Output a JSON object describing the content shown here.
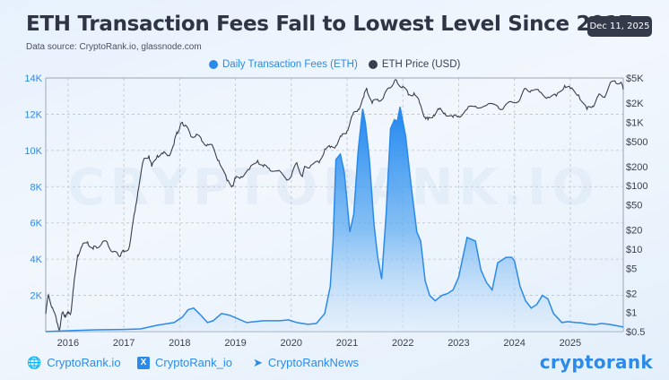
{
  "header": {
    "title": "ETH Transaction Fees Fall to Lowest Level Since 2017",
    "date": "Dec 11, 2025",
    "source": "Data source: CryptoRank.io, glassnode.com"
  },
  "watermark": "CRYPTORANK.IO",
  "footer": {
    "links": [
      {
        "icon": "globe-icon",
        "label": "CryptoRank.io"
      },
      {
        "icon": "x-icon",
        "label": "CryptoRank_io"
      },
      {
        "icon": "telegram-icon",
        "label": "CryptoRankNews"
      }
    ],
    "logo": "cryptorank"
  },
  "colors": {
    "fees": "#2b8ae8",
    "price": "#3a3f4e",
    "left_axis": "#2b8ae8",
    "right_axis": "#3a3f4e"
  },
  "chart_data": {
    "type": "line",
    "title": "ETH Transaction Fees Fall to Lowest Level Since 2017",
    "legend": [
      "Daily Transaction Fees (ETH)",
      "ETH Price (USD)"
    ],
    "legend_position": "top-center",
    "grid": true,
    "x_ticks": [
      "2016",
      "2017",
      "2018",
      "2019",
      "2020",
      "2021",
      "2022",
      "2023",
      "2024",
      "2025"
    ],
    "xlim": [
      2015.6,
      2025.95
    ],
    "left_axis": {
      "label": "Daily Transaction Fees (ETH)",
      "ylim": [
        0,
        14000
      ],
      "ticks": [
        2000,
        4000,
        6000,
        8000,
        10000,
        12000,
        14000
      ],
      "tick_labels": [
        "2K",
        "4K",
        "6K",
        "8K",
        "10K",
        "12K",
        "14K"
      ]
    },
    "right_axis": {
      "label": "ETH Price (USD)",
      "scale": "log",
      "ylim": [
        0.5,
        5000
      ],
      "ticks": [
        0.5,
        1,
        2,
        5,
        10,
        20,
        50,
        100,
        200,
        500,
        1000,
        2000,
        5000
      ],
      "tick_labels": [
        "$0.5",
        "$1",
        "$2",
        "$5",
        "$10",
        "$20",
        "$50",
        "$100",
        "$200",
        "$500",
        "$1K",
        "$2K",
        "$5K"
      ]
    },
    "series": [
      {
        "name": "Daily Transaction Fees (ETH)",
        "axis": "left",
        "style": "area",
        "x": [
          2015.6,
          2016.0,
          2016.5,
          2017.0,
          2017.3,
          2017.6,
          2017.9,
          2018.05,
          2018.15,
          2018.25,
          2018.35,
          2018.5,
          2018.6,
          2018.75,
          2018.9,
          2019.2,
          2019.5,
          2019.8,
          2019.95,
          2020.1,
          2020.3,
          2020.45,
          2020.6,
          2020.7,
          2020.75,
          2020.8,
          2020.88,
          2020.95,
          2021.05,
          2021.12,
          2021.2,
          2021.28,
          2021.33,
          2021.4,
          2021.48,
          2021.55,
          2021.62,
          2021.7,
          2021.78,
          2021.85,
          2021.9,
          2021.95,
          2022.05,
          2022.15,
          2022.25,
          2022.32,
          2022.4,
          2022.48,
          2022.58,
          2022.7,
          2022.8,
          2022.9,
          2023.0,
          2023.15,
          2023.3,
          2023.4,
          2023.5,
          2023.6,
          2023.7,
          2023.85,
          2023.95,
          2024.0,
          2024.1,
          2024.2,
          2024.3,
          2024.4,
          2024.5,
          2024.6,
          2024.7,
          2024.85,
          2024.95,
          2025.1,
          2025.2,
          2025.3,
          2025.45,
          2025.55,
          2025.7,
          2025.95
        ],
        "values": [
          0,
          50,
          100,
          120,
          150,
          350,
          500,
          800,
          1200,
          1300,
          1000,
          500,
          600,
          1000,
          900,
          500,
          600,
          600,
          650,
          500,
          400,
          450,
          1000,
          2500,
          5000,
          9500,
          9800,
          8800,
          5500,
          6500,
          10000,
          12300,
          11500,
          9500,
          6000,
          4100,
          2900,
          6500,
          11200,
          11700,
          11600,
          12400,
          10800,
          8000,
          5500,
          5000,
          2800,
          2000,
          1700,
          2000,
          2100,
          2300,
          3000,
          5200,
          5000,
          3400,
          2700,
          2300,
          3800,
          4100,
          4100,
          3900,
          2500,
          1700,
          1300,
          1500,
          2000,
          1800,
          1000,
          500,
          550,
          500,
          480,
          420,
          380,
          450,
          400,
          250
        ]
      },
      {
        "name": "ETH Price (USD)",
        "axis": "right",
        "style": "line",
        "x": [
          2015.6,
          2015.65,
          2015.72,
          2015.8,
          2015.85,
          2015.9,
          2015.95,
          2016.0,
          2016.05,
          2016.1,
          2016.17,
          2016.25,
          2016.35,
          2016.45,
          2016.5,
          2016.6,
          2016.7,
          2016.8,
          2016.9,
          2016.95,
          2017.0,
          2017.1,
          2017.2,
          2017.25,
          2017.35,
          2017.45,
          2017.5,
          2017.6,
          2017.7,
          2017.8,
          2017.9,
          2017.95,
          2018.0,
          2018.05,
          2018.1,
          2018.2,
          2018.3,
          2018.4,
          2018.5,
          2018.6,
          2018.7,
          2018.85,
          2018.95,
          2019.0,
          2019.1,
          2019.25,
          2019.4,
          2019.5,
          2019.6,
          2019.75,
          2019.9,
          2020.0,
          2020.1,
          2020.2,
          2020.25,
          2020.35,
          2020.5,
          2020.6,
          2020.7,
          2020.8,
          2020.9,
          2021.0,
          2021.1,
          2021.2,
          2021.3,
          2021.35,
          2021.45,
          2021.55,
          2021.65,
          2021.75,
          2021.85,
          2021.9,
          2022.0,
          2022.1,
          2022.2,
          2022.3,
          2022.4,
          2022.45,
          2022.55,
          2022.65,
          2022.75,
          2022.9,
          2023.0,
          2023.15,
          2023.3,
          2023.5,
          2023.7,
          2023.8,
          2023.95,
          2024.1,
          2024.2,
          2024.3,
          2024.45,
          2024.6,
          2024.75,
          2024.9,
          2025.0,
          2025.15,
          2025.3,
          2025.4,
          2025.5,
          2025.6,
          2025.7,
          2025.8,
          2025.9,
          2025.95
        ],
        "values": [
          0.95,
          1.9,
          1.2,
          0.7,
          0.55,
          1.0,
          0.9,
          0.95,
          1.0,
          2.5,
          8,
          11,
          13,
          10,
          11,
          12,
          13,
          9,
          8,
          8.5,
          9,
          11,
          40,
          80,
          250,
          300,
          200,
          300,
          320,
          300,
          450,
          700,
          800,
          1000,
          900,
          600,
          650,
          500,
          450,
          400,
          250,
          120,
          100,
          130,
          140,
          180,
          250,
          200,
          190,
          170,
          130,
          140,
          230,
          140,
          200,
          210,
          230,
          380,
          400,
          430,
          600,
          730,
          1300,
          1600,
          2500,
          3500,
          2000,
          2300,
          2400,
          3500,
          4500,
          4200,
          3700,
          2700,
          2900,
          2000,
          1200,
          1100,
          1300,
          1600,
          1400,
          1200,
          1250,
          1600,
          1800,
          1850,
          1800,
          1650,
          2100,
          2300,
          3400,
          3200,
          3000,
          2500,
          2600,
          3800,
          3400,
          2700,
          1600,
          1800,
          2600,
          2500,
          3800,
          4500,
          4200,
          3300
        ]
      }
    ]
  }
}
